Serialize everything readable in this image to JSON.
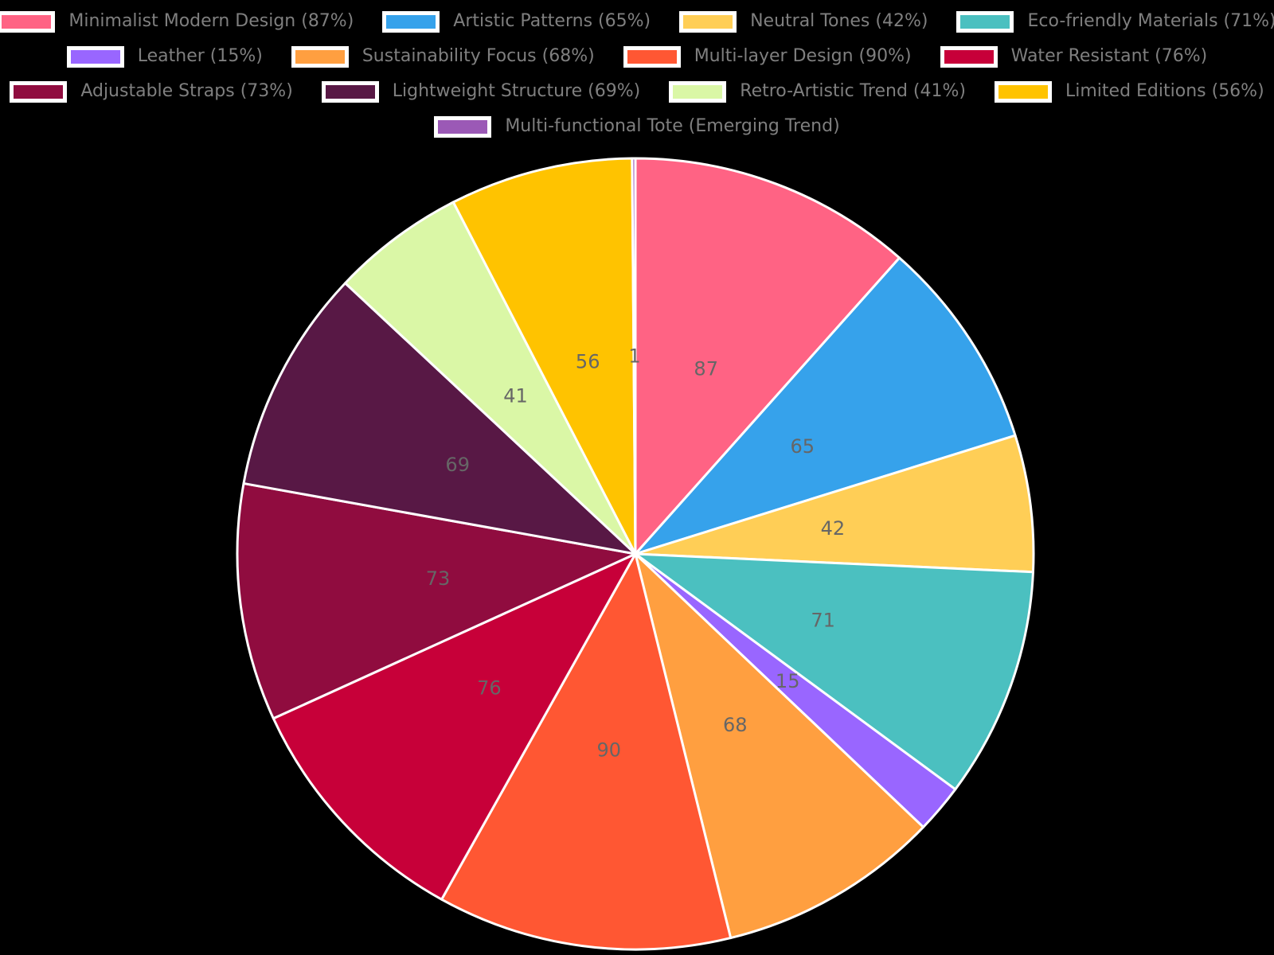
{
  "background": "#000000",
  "legend": {
    "position": "top",
    "text_color": "#7f7f7f",
    "swatch_border_color": "#ffffff",
    "rows": [
      [
        0,
        1,
        2,
        3
      ],
      [
        4,
        5,
        6,
        7
      ],
      [
        8,
        9,
        10,
        11
      ],
      [
        12
      ]
    ],
    "items": [
      {
        "label": "Minimalist Modern Design (87%)",
        "color": "#FF6384"
      },
      {
        "label": "Artistic Patterns (65%)",
        "color": "#36A2EB"
      },
      {
        "label": "Neutral Tones (42%)",
        "color": "#FFCE56"
      },
      {
        "label": "Eco-friendly Materials (71%)",
        "color": "#4BC0C0"
      },
      {
        "label": "Leather (15%)",
        "color": "#9966FF"
      },
      {
        "label": "Sustainability Focus (68%)",
        "color": "#FF9F40"
      },
      {
        "label": "Multi-layer Design (90%)",
        "color": "#FF5733"
      },
      {
        "label": "Water Resistant (76%)",
        "color": "#C70039"
      },
      {
        "label": "Adjustable Straps (73%)",
        "color": "#900C3F"
      },
      {
        "label": "Lightweight Structure (69%)",
        "color": "#581845"
      },
      {
        "label": "Retro-Artistic Trend (41%)",
        "color": "#DAF7A6"
      },
      {
        "label": "Limited Editions (56%)",
        "color": "#FFC300"
      },
      {
        "label": "Multi-functional Tote (Emerging Trend)",
        "color": "#9B59B6"
      }
    ]
  },
  "chart_data": {
    "type": "pie",
    "title": "",
    "categories": [
      "Minimalist Modern Design",
      "Artistic Patterns",
      "Neutral Tones",
      "Eco-friendly Materials",
      "Leather",
      "Sustainability Focus",
      "Multi-layer Design",
      "Water Resistant",
      "Adjustable Straps",
      "Lightweight Structure",
      "Retro-Artistic Trend",
      "Limited Editions",
      "Multi-functional Tote"
    ],
    "values": [
      87,
      65,
      42,
      71,
      15,
      68,
      90,
      76,
      73,
      69,
      41,
      56,
      1
    ],
    "slice_labels": [
      "87",
      "65",
      "42",
      "71",
      "15",
      "68",
      "90",
      "76",
      "73",
      "69",
      "41",
      "56",
      "1"
    ],
    "colors": [
      "#FF6384",
      "#36A2EB",
      "#FFCE56",
      "#4BC0C0",
      "#9966FF",
      "#FF9F40",
      "#FF5733",
      "#C70039",
      "#900C3F",
      "#581845",
      "#DAF7A6",
      "#FFC300",
      "#9B59B6"
    ],
    "legend_position": "top",
    "start_angle_deg": 90,
    "direction": "clockwise",
    "label_radius_frac": 0.5,
    "label_color": "#666666",
    "wedge_border_color": "#ffffff",
    "background": "#000000"
  }
}
